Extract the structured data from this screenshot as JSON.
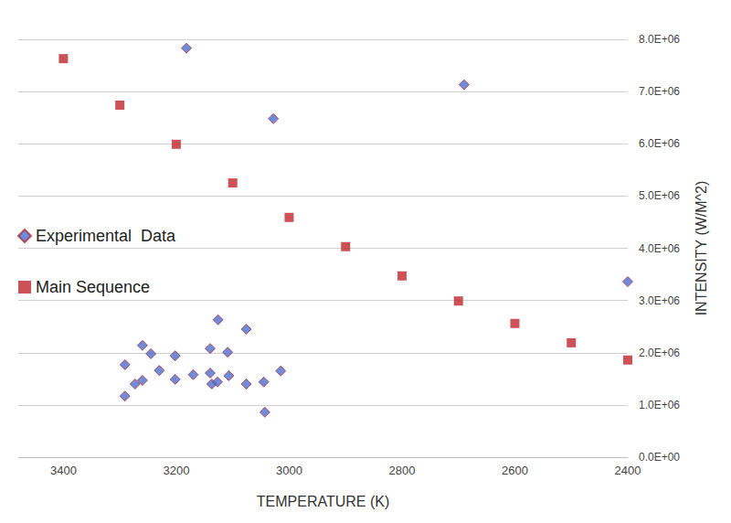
{
  "chart_data": {
    "type": "scatter",
    "x_label": "TEMPERATURE (K)",
    "y_label": "INTENSITY (W/M^2)",
    "xlim": [
      3480,
      2400
    ],
    "xticks": [
      3400,
      3200,
      3000,
      2800,
      2600,
      2400
    ],
    "ylim": [
      0,
      8000000
    ],
    "yticks": [
      {
        "value": 0,
        "label": "0.0E+00"
      },
      {
        "value": 1000000,
        "label": "1.0E+06"
      },
      {
        "value": 2000000,
        "label": "2.0E+06"
      },
      {
        "value": 3000000,
        "label": "3.0E+06"
      },
      {
        "value": 4000000,
        "label": "4.0E+06"
      },
      {
        "value": 5000000,
        "label": "5.0E+06"
      },
      {
        "value": 6000000,
        "label": "6.0E+06"
      },
      {
        "value": 7000000,
        "label": "7.0E+06"
      },
      {
        "value": 8000000,
        "label": "8.0E+06"
      }
    ],
    "grid": true,
    "legend": "left",
    "series": [
      {
        "name": "Experimental  Data",
        "color": "#4a6fd0",
        "marker": "diamond",
        "x": [
          3182,
          2690,
          3028,
          2400,
          3291,
          3291,
          3273,
          3260,
          3260,
          3245,
          3230,
          3202,
          3202,
          3170,
          3140,
          3140,
          3137,
          3127,
          3126,
          3109,
          3107,
          3076,
          3076,
          3045,
          3043,
          3015
        ],
        "values": [
          7830000,
          7130000,
          6480000,
          3360000,
          1770000,
          1170000,
          1400000,
          2140000,
          1470000,
          1980000,
          1660000,
          1940000,
          1490000,
          1580000,
          1610000,
          2080000,
          1400000,
          1440000,
          2630000,
          2010000,
          1560000,
          2450000,
          1400000,
          1440000,
          860000,
          1650000
        ]
      },
      {
        "name": "Main Sequence",
        "color": "#c0272d",
        "marker": "square",
        "x": [
          3400,
          3300,
          3200,
          3100,
          3000,
          2900,
          2800,
          2700,
          2600,
          2500,
          2400
        ],
        "values": [
          7630000,
          6740000,
          5990000,
          5250000,
          4590000,
          4030000,
          3470000,
          2990000,
          2560000,
          2190000,
          1860000
        ]
      }
    ]
  }
}
